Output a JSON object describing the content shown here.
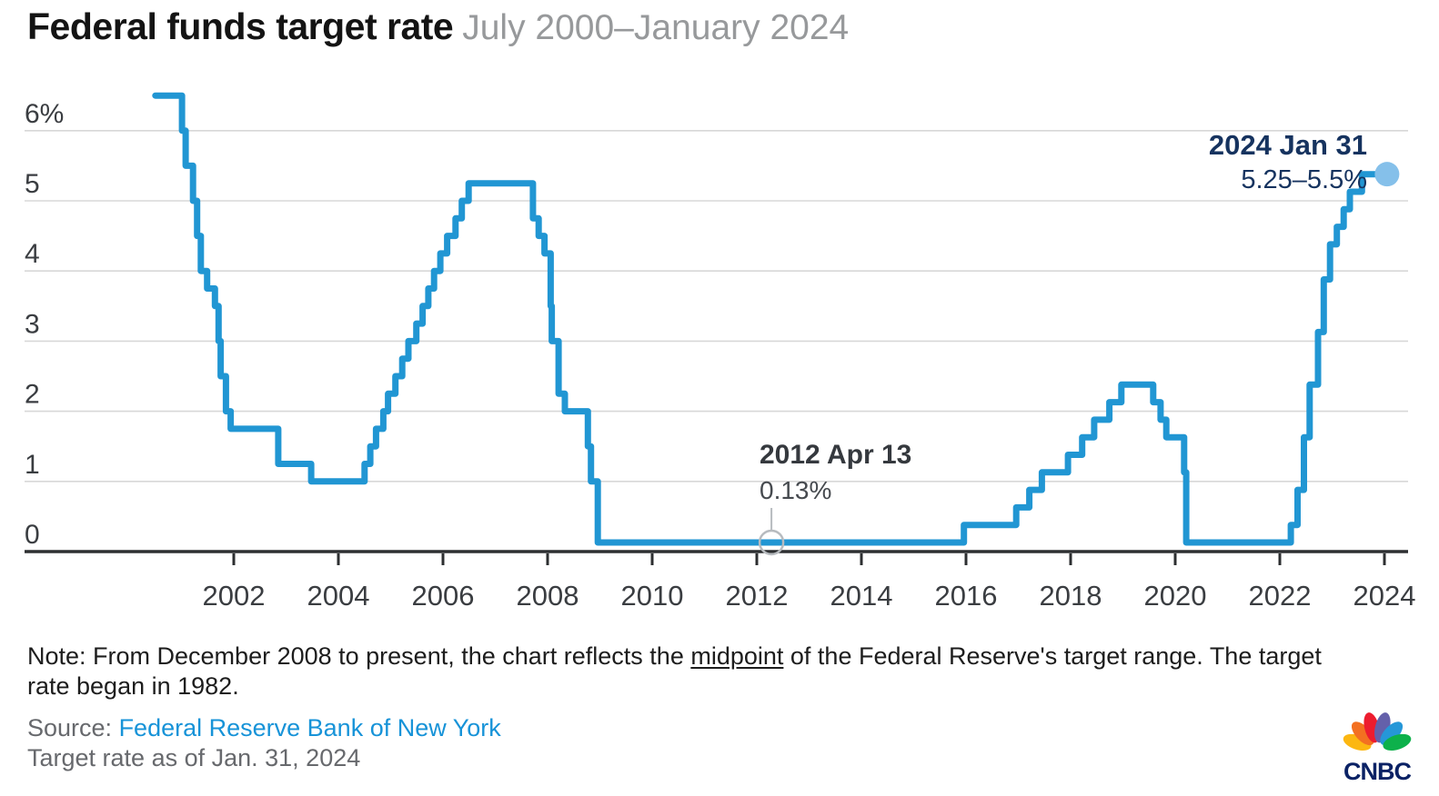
{
  "header": {
    "title": "Federal funds target rate",
    "subtitle": "July 2000–January 2024"
  },
  "chart_data": {
    "type": "line",
    "title": "Federal funds target rate",
    "subtitle": "July 2000–January 2024",
    "xlabel": "",
    "ylabel": "",
    "ylim": [
      0,
      6.5
    ],
    "xlim": [
      2000.5,
      2024.08
    ],
    "grid": "horizontal",
    "legend": "none",
    "yticks": [
      {
        "value": 0,
        "label": "0"
      },
      {
        "value": 1,
        "label": "1"
      },
      {
        "value": 2,
        "label": "2"
      },
      {
        "value": 3,
        "label": "3"
      },
      {
        "value": 4,
        "label": "4"
      },
      {
        "value": 5,
        "label": "5"
      },
      {
        "value": 6,
        "label": "6%"
      }
    ],
    "xticks": [
      {
        "value": 2002,
        "label": "2002"
      },
      {
        "value": 2004,
        "label": "2004"
      },
      {
        "value": 2006,
        "label": "2006"
      },
      {
        "value": 2008,
        "label": "2008"
      },
      {
        "value": 2010,
        "label": "2010"
      },
      {
        "value": 2012,
        "label": "2012"
      },
      {
        "value": 2014,
        "label": "2014"
      },
      {
        "value": 2016,
        "label": "2016"
      },
      {
        "value": 2018,
        "label": "2018"
      },
      {
        "value": 2020,
        "label": "2020"
      },
      {
        "value": 2022,
        "label": "2022"
      },
      {
        "value": 2024,
        "label": "2024"
      }
    ],
    "series": [
      {
        "name": "Federal funds target rate (midpoint of target range from Dec 2008)",
        "step": true,
        "unit": "%",
        "points": [
          [
            2000.5,
            6.5
          ],
          [
            2001.01,
            6.0
          ],
          [
            2001.08,
            5.5
          ],
          [
            2001.22,
            5.0
          ],
          [
            2001.3,
            4.5
          ],
          [
            2001.37,
            4.0
          ],
          [
            2001.49,
            3.75
          ],
          [
            2001.64,
            3.5
          ],
          [
            2001.71,
            3.0
          ],
          [
            2001.75,
            2.5
          ],
          [
            2001.85,
            2.0
          ],
          [
            2001.94,
            1.75
          ],
          [
            2002.85,
            1.25
          ],
          [
            2003.48,
            1.0
          ],
          [
            2004.5,
            1.25
          ],
          [
            2004.61,
            1.5
          ],
          [
            2004.72,
            1.75
          ],
          [
            2004.86,
            2.0
          ],
          [
            2004.95,
            2.25
          ],
          [
            2005.09,
            2.5
          ],
          [
            2005.22,
            2.75
          ],
          [
            2005.34,
            3.0
          ],
          [
            2005.49,
            3.25
          ],
          [
            2005.61,
            3.5
          ],
          [
            2005.72,
            3.75
          ],
          [
            2005.83,
            4.0
          ],
          [
            2005.95,
            4.25
          ],
          [
            2006.08,
            4.5
          ],
          [
            2006.24,
            4.75
          ],
          [
            2006.36,
            5.0
          ],
          [
            2006.49,
            5.25
          ],
          [
            2007.72,
            4.75
          ],
          [
            2007.83,
            4.5
          ],
          [
            2007.94,
            4.25
          ],
          [
            2008.06,
            3.5
          ],
          [
            2008.08,
            3.0
          ],
          [
            2008.21,
            2.25
          ],
          [
            2008.33,
            2.0
          ],
          [
            2008.77,
            1.5
          ],
          [
            2008.83,
            1.0
          ],
          [
            2008.96,
            0.13
          ],
          [
            2015.96,
            0.38
          ],
          [
            2016.96,
            0.63
          ],
          [
            2017.21,
            0.88
          ],
          [
            2017.45,
            1.13
          ],
          [
            2017.95,
            1.38
          ],
          [
            2018.22,
            1.63
          ],
          [
            2018.45,
            1.88
          ],
          [
            2018.74,
            2.13
          ],
          [
            2018.97,
            2.38
          ],
          [
            2019.58,
            2.13
          ],
          [
            2019.72,
            1.88
          ],
          [
            2019.83,
            1.63
          ],
          [
            2020.17,
            1.13
          ],
          [
            2020.21,
            0.13
          ],
          [
            2022.21,
            0.38
          ],
          [
            2022.34,
            0.88
          ],
          [
            2022.46,
            1.63
          ],
          [
            2022.57,
            2.38
          ],
          [
            2022.73,
            3.13
          ],
          [
            2022.84,
            3.88
          ],
          [
            2022.96,
            4.38
          ],
          [
            2023.09,
            4.63
          ],
          [
            2023.22,
            4.88
          ],
          [
            2023.34,
            5.13
          ],
          [
            2023.57,
            5.38
          ],
          [
            2024.05,
            5.38
          ]
        ]
      }
    ],
    "annotations": [
      {
        "title": "2012 Apr 13",
        "value": "0.13%",
        "x": 2012.28,
        "y": 0.13,
        "style": "open-circle-callout"
      },
      {
        "title": "2024 Jan 31",
        "value": "5.25–5.5%",
        "x": 2024.05,
        "y": 5.38,
        "style": "endpoint-dot"
      }
    ]
  },
  "note": {
    "prefix": "Note: From December 2008 to present, the chart reflects the ",
    "underlined": "midpoint",
    "suffix": " of the Federal Reserve's target range. The target rate began in 1982."
  },
  "source": {
    "label": "Source: ",
    "link": "Federal Reserve Bank of New York",
    "asof": "Target rate as of Jan. 31, 2024"
  },
  "logo": {
    "text": "CNBC"
  },
  "colors": {
    "line": "#2196d3",
    "endpoint_dot": "#85c0ea",
    "annotation_navy": "#16335f",
    "annotation_dark": "#35393e",
    "grid": "#d8d8d8",
    "axis": "#2d2f31",
    "tick_label": "#3a3d41",
    "callout_gray": "#b7bbbf",
    "link_blue": "#1793d8",
    "cnbc_navy": "#0b2265",
    "peacock": [
      "#fcb711",
      "#f37021",
      "#ed1c2e",
      "#6460aa",
      "#2597d8",
      "#0db14b"
    ]
  }
}
